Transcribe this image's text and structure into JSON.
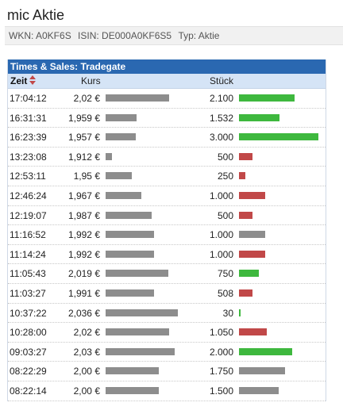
{
  "page": {
    "title": "mic Aktie",
    "wkn": "WKN: A0KF6S",
    "isin": "ISIN: DE000A0KF6S5",
    "typ": "Typ: Aktie"
  },
  "panel": {
    "title": "Times & Sales: Tradegate",
    "columns": {
      "zeit": "Zeit",
      "kurs": "Kurs",
      "stueck": "Stück"
    }
  },
  "colors": {
    "header_blue": "#2a68b1",
    "subheader_blue": "#d5e4f6",
    "price_bar": "#8d8d8d",
    "up_green": "#3eb83e",
    "down_red": "#c14848",
    "neutral_gray": "#8d8d8d"
  },
  "trades": [
    {
      "time": "17:04:12",
      "price": "2,02 €",
      "price_value": 2.02,
      "qty": "2.100",
      "qty_value": 2100,
      "direction": "up"
    },
    {
      "time": "16:31:31",
      "price": "1,959 €",
      "price_value": 1.959,
      "qty": "1.532",
      "qty_value": 1532,
      "direction": "up"
    },
    {
      "time": "16:23:39",
      "price": "1,957 €",
      "price_value": 1.957,
      "qty": "3.000",
      "qty_value": 3000,
      "direction": "up"
    },
    {
      "time": "13:23:08",
      "price": "1,912 €",
      "price_value": 1.912,
      "qty": "500",
      "qty_value": 500,
      "direction": "down"
    },
    {
      "time": "12:53:11",
      "price": "1,95 €",
      "price_value": 1.95,
      "qty": "250",
      "qty_value": 250,
      "direction": "down"
    },
    {
      "time": "12:46:24",
      "price": "1,967 €",
      "price_value": 1.967,
      "qty": "1.000",
      "qty_value": 1000,
      "direction": "down"
    },
    {
      "time": "12:19:07",
      "price": "1,987 €",
      "price_value": 1.987,
      "qty": "500",
      "qty_value": 500,
      "direction": "down"
    },
    {
      "time": "11:16:52",
      "price": "1,992 €",
      "price_value": 1.992,
      "qty": "1.000",
      "qty_value": 1000,
      "direction": "neutral"
    },
    {
      "time": "11:14:24",
      "price": "1,992 €",
      "price_value": 1.992,
      "qty": "1.000",
      "qty_value": 1000,
      "direction": "down"
    },
    {
      "time": "11:05:43",
      "price": "2,019 €",
      "price_value": 2.019,
      "qty": "750",
      "qty_value": 750,
      "direction": "up"
    },
    {
      "time": "11:03:27",
      "price": "1,991 €",
      "price_value": 1.991,
      "qty": "508",
      "qty_value": 508,
      "direction": "down"
    },
    {
      "time": "10:37:22",
      "price": "2,036 €",
      "price_value": 2.036,
      "qty": "30",
      "qty_value": 30,
      "direction": "up"
    },
    {
      "time": "10:28:00",
      "price": "2,02 €",
      "price_value": 2.02,
      "qty": "1.050",
      "qty_value": 1050,
      "direction": "down"
    },
    {
      "time": "09:03:27",
      "price": "2,03 €",
      "price_value": 2.03,
      "qty": "2.000",
      "qty_value": 2000,
      "direction": "up"
    },
    {
      "time": "08:22:29",
      "price": "2,00 €",
      "price_value": 2.0,
      "qty": "1.750",
      "qty_value": 1750,
      "direction": "neutral"
    },
    {
      "time": "08:22:14",
      "price": "2,00 €",
      "price_value": 2.0,
      "qty": "1.500",
      "qty_value": 1500,
      "direction": "neutral"
    }
  ]
}
